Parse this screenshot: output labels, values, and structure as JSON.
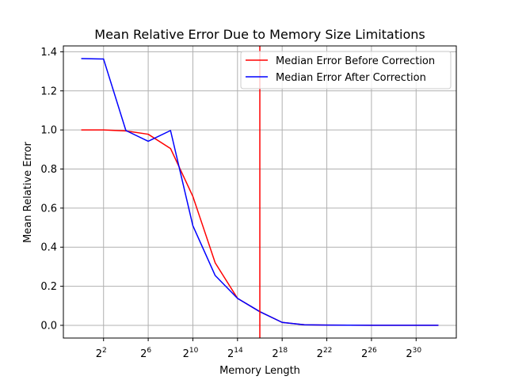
{
  "chart_data": {
    "type": "line",
    "title": "Mean Relative Error Due to Memory Size Limitations",
    "xlabel": "Memory Length",
    "ylabel": "Mean Relative Error",
    "x_scale": "log2",
    "x_exponents": [
      0,
      2,
      4,
      6,
      8,
      10,
      12,
      14,
      16,
      18,
      20,
      22,
      24,
      26,
      28,
      30,
      32
    ],
    "x_ticks": [
      {
        "base": "2",
        "exp": "2",
        "value": 2
      },
      {
        "base": "2",
        "exp": "6",
        "value": 6
      },
      {
        "base": "2",
        "exp": "10",
        "value": 10
      },
      {
        "base": "2",
        "exp": "14",
        "value": 14
      },
      {
        "base": "2",
        "exp": "18",
        "value": 18
      },
      {
        "base": "2",
        "exp": "22",
        "value": 22
      },
      {
        "base": "2",
        "exp": "26",
        "value": 26
      },
      {
        "base": "2",
        "exp": "30",
        "value": 30
      }
    ],
    "xlim": [
      -1.6,
      33.6
    ],
    "ylim": [
      -0.065,
      1.43
    ],
    "y_ticks": [
      "0.0",
      "0.2",
      "0.4",
      "0.6",
      "0.8",
      "1.0",
      "1.2",
      "1.4"
    ],
    "y_tick_values": [
      0.0,
      0.2,
      0.4,
      0.6,
      0.8,
      1.0,
      1.2,
      1.4
    ],
    "grid": true,
    "legend_placement": "top-right",
    "series": [
      {
        "name": "Median Error Before Correction",
        "color": "#ff0000",
        "values": [
          1.0,
          1.0,
          0.995,
          0.978,
          0.905,
          0.66,
          0.32,
          0.138,
          0.07,
          0.015,
          0.003,
          0.0015,
          0.0008,
          0.0005,
          0.0003,
          0.0002,
          0.0001
        ]
      },
      {
        "name": "Median Error After Correction",
        "color": "#0000ff",
        "values": [
          1.365,
          1.363,
          0.997,
          0.942,
          0.997,
          0.51,
          0.255,
          0.138,
          0.07,
          0.015,
          0.003,
          0.0015,
          0.0008,
          0.0005,
          0.0003,
          0.0002,
          0.0001
        ]
      }
    ],
    "vertical_line": {
      "x": 16,
      "color": "#ff0000"
    }
  }
}
